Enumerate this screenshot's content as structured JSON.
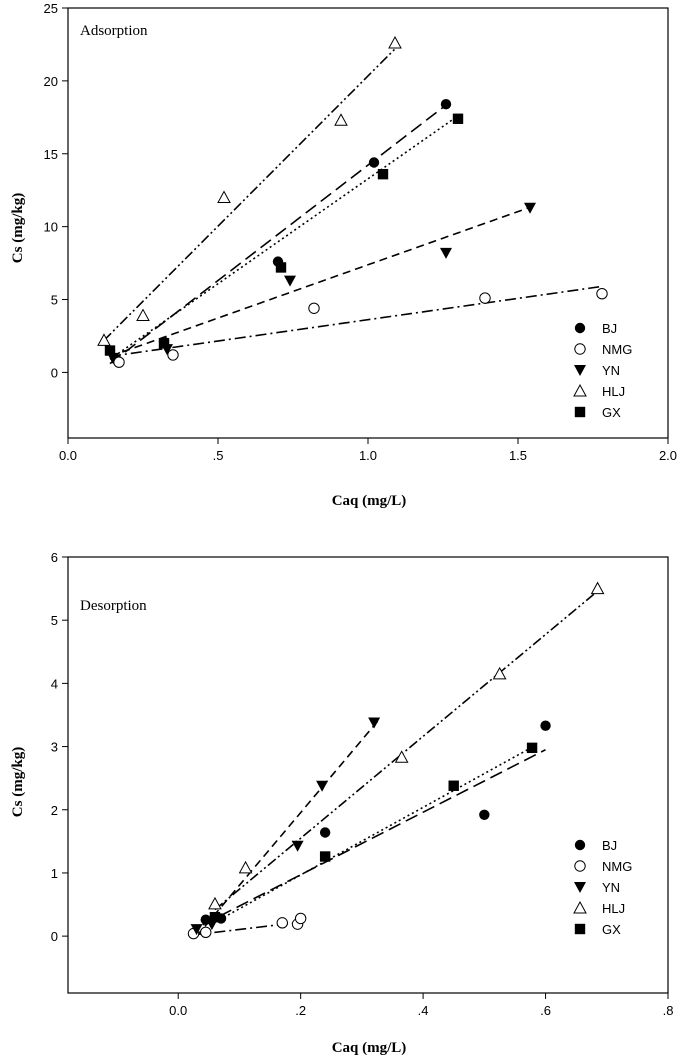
{
  "chart_data": [
    {
      "type": "scatter",
      "title": "Adsorption",
      "xlabel": "Caq (mg/L)",
      "ylabel": "Cs (mg/kg)",
      "xlim": [
        0.0,
        2.0
      ],
      "ylim": [
        -4.5,
        25
      ],
      "xticks": [
        {
          "value": 0.0,
          "label": "0.0"
        },
        {
          "value": 0.5,
          "label": ".5"
        },
        {
          "value": 1.0,
          "label": "1.0"
        },
        {
          "value": 1.5,
          "label": "1.5"
        },
        {
          "value": 2.0,
          "label": "2.0"
        }
      ],
      "yticks": [
        {
          "value": 0,
          "label": "0"
        },
        {
          "value": 5,
          "label": "5"
        },
        {
          "value": 10,
          "label": "10"
        },
        {
          "value": 15,
          "label": "15"
        },
        {
          "value": 20,
          "label": "20"
        },
        {
          "value": 25,
          "label": "25"
        }
      ],
      "legend_position": "right",
      "series": [
        {
          "name": "BJ",
          "marker": "circle-filled",
          "dash": "long-dash",
          "points": [
            [
              0.16,
              0.9
            ],
            [
              0.32,
              2.1
            ],
            [
              0.7,
              7.6
            ],
            [
              1.02,
              14.4
            ],
            [
              1.26,
              18.4
            ]
          ],
          "line": [
            [
              0.14,
              0.6
            ],
            [
              1.27,
              18.5
            ]
          ]
        },
        {
          "name": "NMG",
          "marker": "circle-open",
          "dash": "dash-dot",
          "points": [
            [
              0.17,
              0.7
            ],
            [
              0.35,
              1.2
            ],
            [
              0.82,
              4.4
            ],
            [
              1.39,
              5.1
            ],
            [
              1.78,
              5.4
            ]
          ],
          "line": [
            [
              0.14,
              1.1
            ],
            [
              1.78,
              5.9
            ]
          ]
        },
        {
          "name": "YN",
          "marker": "triangle-down-filled",
          "dash": "dash",
          "points": [
            [
              0.15,
              1.0
            ],
            [
              0.33,
              1.6
            ],
            [
              0.74,
              6.3
            ],
            [
              1.26,
              8.2
            ],
            [
              1.54,
              11.3
            ]
          ],
          "line": [
            [
              0.14,
              1.1
            ],
            [
              1.55,
              11.4
            ]
          ]
        },
        {
          "name": "HLJ",
          "marker": "triangle-up-open",
          "dash": "dash-dot-dot",
          "points": [
            [
              0.12,
              2.2
            ],
            [
              0.25,
              3.9
            ],
            [
              0.52,
              12.0
            ],
            [
              0.91,
              17.3
            ],
            [
              1.09,
              22.6
            ]
          ],
          "line": [
            [
              0.12,
              2.2
            ],
            [
              1.1,
              22.4
            ]
          ]
        },
        {
          "name": "GX",
          "marker": "square-filled",
          "dash": "dot",
          "points": [
            [
              0.14,
              1.5
            ],
            [
              0.32,
              2.0
            ],
            [
              0.71,
              7.2
            ],
            [
              1.05,
              13.6
            ],
            [
              1.3,
              17.4
            ]
          ],
          "line": [
            [
              0.14,
              0.9
            ],
            [
              1.3,
              17.6
            ]
          ]
        }
      ]
    },
    {
      "type": "scatter",
      "title": "Desorption",
      "xlabel": "Caq (mg/L)",
      "ylabel": "Cs (mg/kg)",
      "xlim": [
        -0.18,
        0.8
      ],
      "ylim": [
        -0.9,
        6
      ],
      "xticks": [
        {
          "value": 0.0,
          "label": "0.0"
        },
        {
          "value": 0.2,
          "label": ".2"
        },
        {
          "value": 0.4,
          "label": ".4"
        },
        {
          "value": 0.6,
          "label": ".6"
        },
        {
          "value": 0.8,
          "label": ".8"
        }
      ],
      "yticks": [
        {
          "value": 0,
          "label": "0"
        },
        {
          "value": 1,
          "label": "1"
        },
        {
          "value": 2,
          "label": "2"
        },
        {
          "value": 3,
          "label": "3"
        },
        {
          "value": 4,
          "label": "4"
        },
        {
          "value": 5,
          "label": "5"
        },
        {
          "value": 6,
          "label": "6"
        }
      ],
      "legend_position": "bottom-right",
      "series": [
        {
          "name": "BJ",
          "marker": "circle-filled",
          "dash": "long-dash",
          "points": [
            [
              0.045,
              0.26
            ],
            [
              0.07,
              0.28
            ],
            [
              0.24,
              1.64
            ],
            [
              0.5,
              1.92
            ],
            [
              0.6,
              3.33
            ]
          ],
          "line": [
            [
              0.04,
              0.18
            ],
            [
              0.6,
              2.95
            ]
          ]
        },
        {
          "name": "NMG",
          "marker": "circle-open",
          "dash": "dash-dot",
          "points": [
            [
              0.025,
              0.04
            ],
            [
              0.045,
              0.06
            ],
            [
              0.17,
              0.21
            ],
            [
              0.195,
              0.19
            ],
            [
              0.2,
              0.28
            ]
          ],
          "line": [
            [
              0.025,
              0.02
            ],
            [
              0.2,
              0.22
            ]
          ]
        },
        {
          "name": "YN",
          "marker": "triangle-down-filled",
          "dash": "dash",
          "points": [
            [
              0.03,
              0.11
            ],
            [
              0.055,
              0.19
            ],
            [
              0.195,
              1.43
            ],
            [
              0.235,
              2.38
            ],
            [
              0.32,
              3.38
            ]
          ],
          "line": [
            [
              0.03,
              0.0
            ],
            [
              0.33,
              3.45
            ]
          ]
        },
        {
          "name": "HLJ",
          "marker": "triangle-up-open",
          "dash": "dash-dot-dot",
          "points": [
            [
              0.06,
              0.51
            ],
            [
              0.11,
              1.08
            ],
            [
              0.365,
              2.83
            ],
            [
              0.525,
              4.15
            ],
            [
              0.685,
              5.5
            ]
          ],
          "line": [
            [
              0.06,
              0.42
            ],
            [
              0.69,
              5.5
            ]
          ]
        },
        {
          "name": "GX",
          "marker": "square-filled",
          "dash": "dot",
          "points": [
            [
              0.06,
              0.3
            ],
            [
              0.24,
              1.26
            ],
            [
              0.45,
              2.38
            ],
            [
              0.578,
              2.98
            ]
          ],
          "line": [
            [
              0.06,
              0.22
            ],
            [
              0.58,
              3.0
            ]
          ]
        }
      ]
    }
  ]
}
